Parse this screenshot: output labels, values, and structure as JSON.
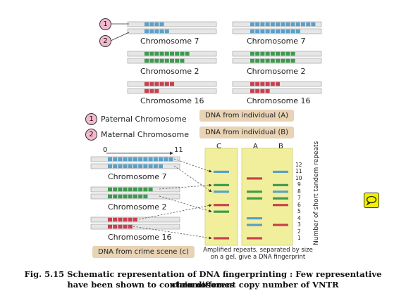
{
  "legend": {
    "item1_num": "1",
    "item1_label": "Paternal Chromosome",
    "item2_num": "2",
    "item2_label": "Maternal Chromosome"
  },
  "individual_a": {
    "label": "DNA from individual (A)",
    "chromosomes": [
      "Chromosome 7",
      "Chromosome 2",
      "Chromosome 16"
    ]
  },
  "individual_b": {
    "label": "DNA from individual (B)",
    "chromosomes": [
      "Chromosome 7",
      "Chromosome 2",
      "Chromosome 16"
    ]
  },
  "crime_scene": {
    "label": "DNA from crime scene (c)",
    "scale_start": "0",
    "scale_end": "11",
    "chromosomes": [
      "Chromosome 7",
      "Chromosome 2",
      "Chromosome 16"
    ]
  },
  "gel": {
    "lanes": [
      "C",
      "A",
      "B"
    ],
    "axis_label": "Number of short tandem repeats",
    "ticks": [
      "12",
      "11",
      "10",
      "9",
      "8",
      "7",
      "6",
      "5",
      "4",
      "3",
      "2",
      "1"
    ],
    "note": "Amplified repeats, separated by size on a gel, give a DNA fingerprint"
  },
  "caption": {
    "line1": "Fig. 5.15 Schematic representation of DNA fingerprinting : Few representative chromosomes",
    "line2": "have been shown to contain different copy number of VNTR"
  },
  "colors": {
    "blue": "#5aa0c8",
    "green": "#3e9a4e",
    "red": "#c8404e",
    "gel": "#f2ef9c",
    "box": "#e8d3b4"
  },
  "icons": {
    "comment": "comment-icon"
  }
}
